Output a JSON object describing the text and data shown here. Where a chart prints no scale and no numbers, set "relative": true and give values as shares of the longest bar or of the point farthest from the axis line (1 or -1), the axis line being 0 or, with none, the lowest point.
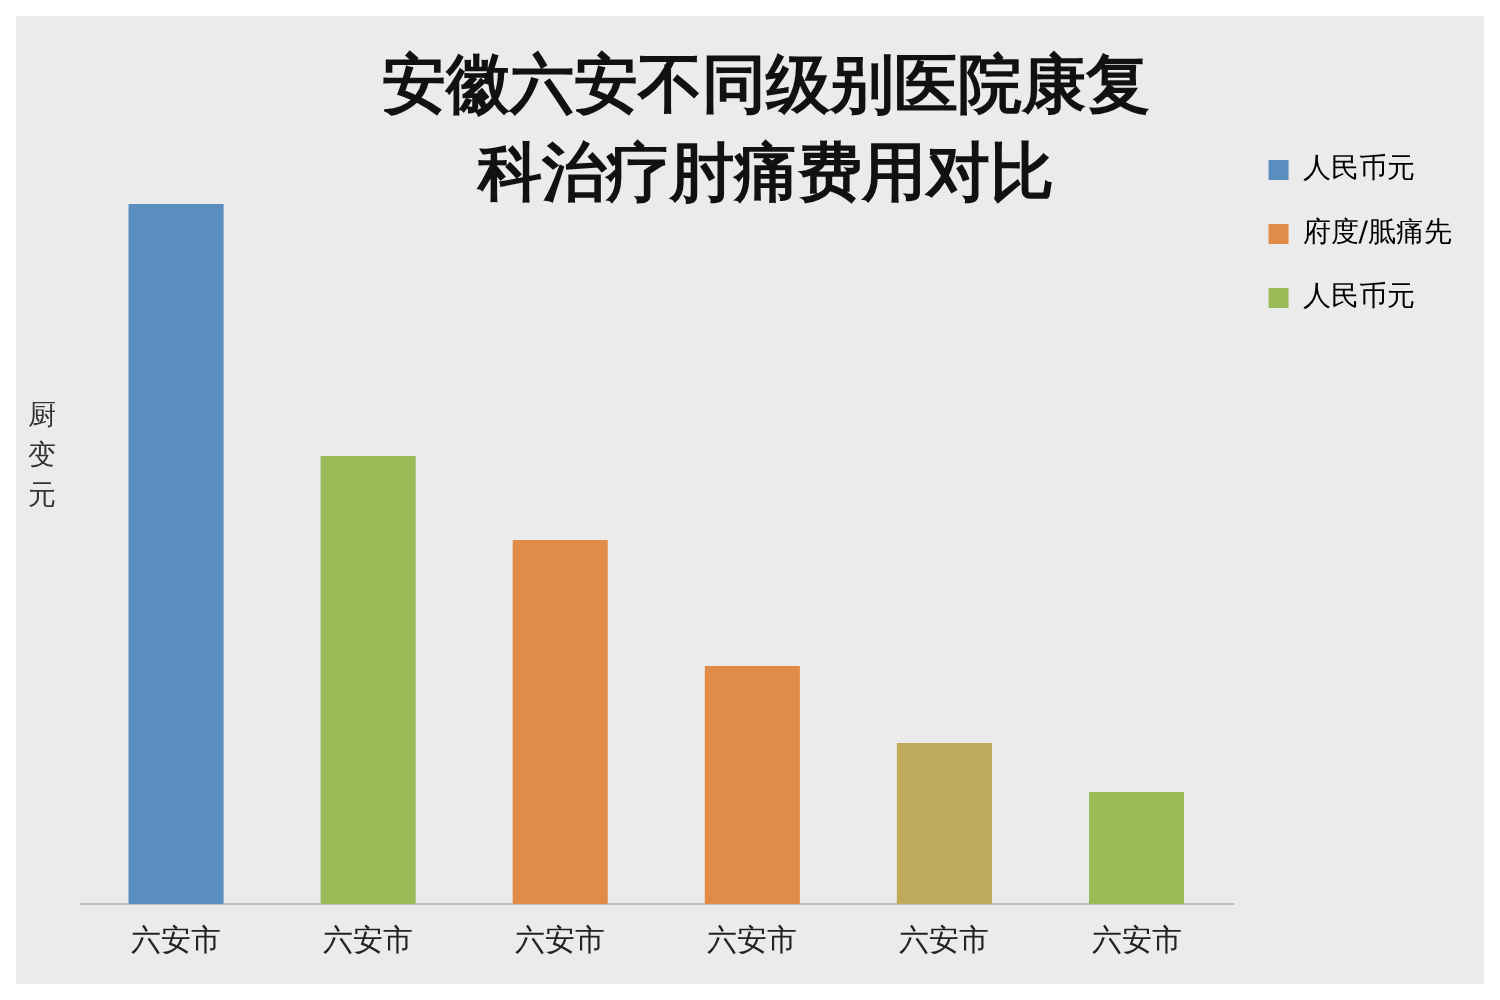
{
  "chart_data": {
    "type": "bar",
    "title": "安徽六安不同级别医院康复科治疗肘痛费用对比",
    "ylabel": "厨变元",
    "categories": [
      "六安市",
      "六安市",
      "六安市",
      "六安市",
      "六安市",
      "六安市"
    ],
    "series": [
      {
        "name": "人民币元",
        "color": "#5b8ec0",
        "values": [
          1,
          null,
          null,
          null,
          null,
          null
        ]
      },
      {
        "name": "府度/胝痛先",
        "color": "#e08c48",
        "values": [
          null,
          null,
          0.52,
          0.34,
          null,
          null
        ]
      },
      {
        "name": "人民币元",
        "color": "#9bbb59",
        "colors": [
          "#9bbb59",
          "#9bbb59",
          "#9bbb59",
          "#9bbb59",
          "#bfa95a",
          "#9bbb59"
        ],
        "values": [
          null,
          0.64,
          null,
          null,
          0.23,
          0.16
        ]
      }
    ],
    "relative": true,
    "legend": "top right"
  }
}
